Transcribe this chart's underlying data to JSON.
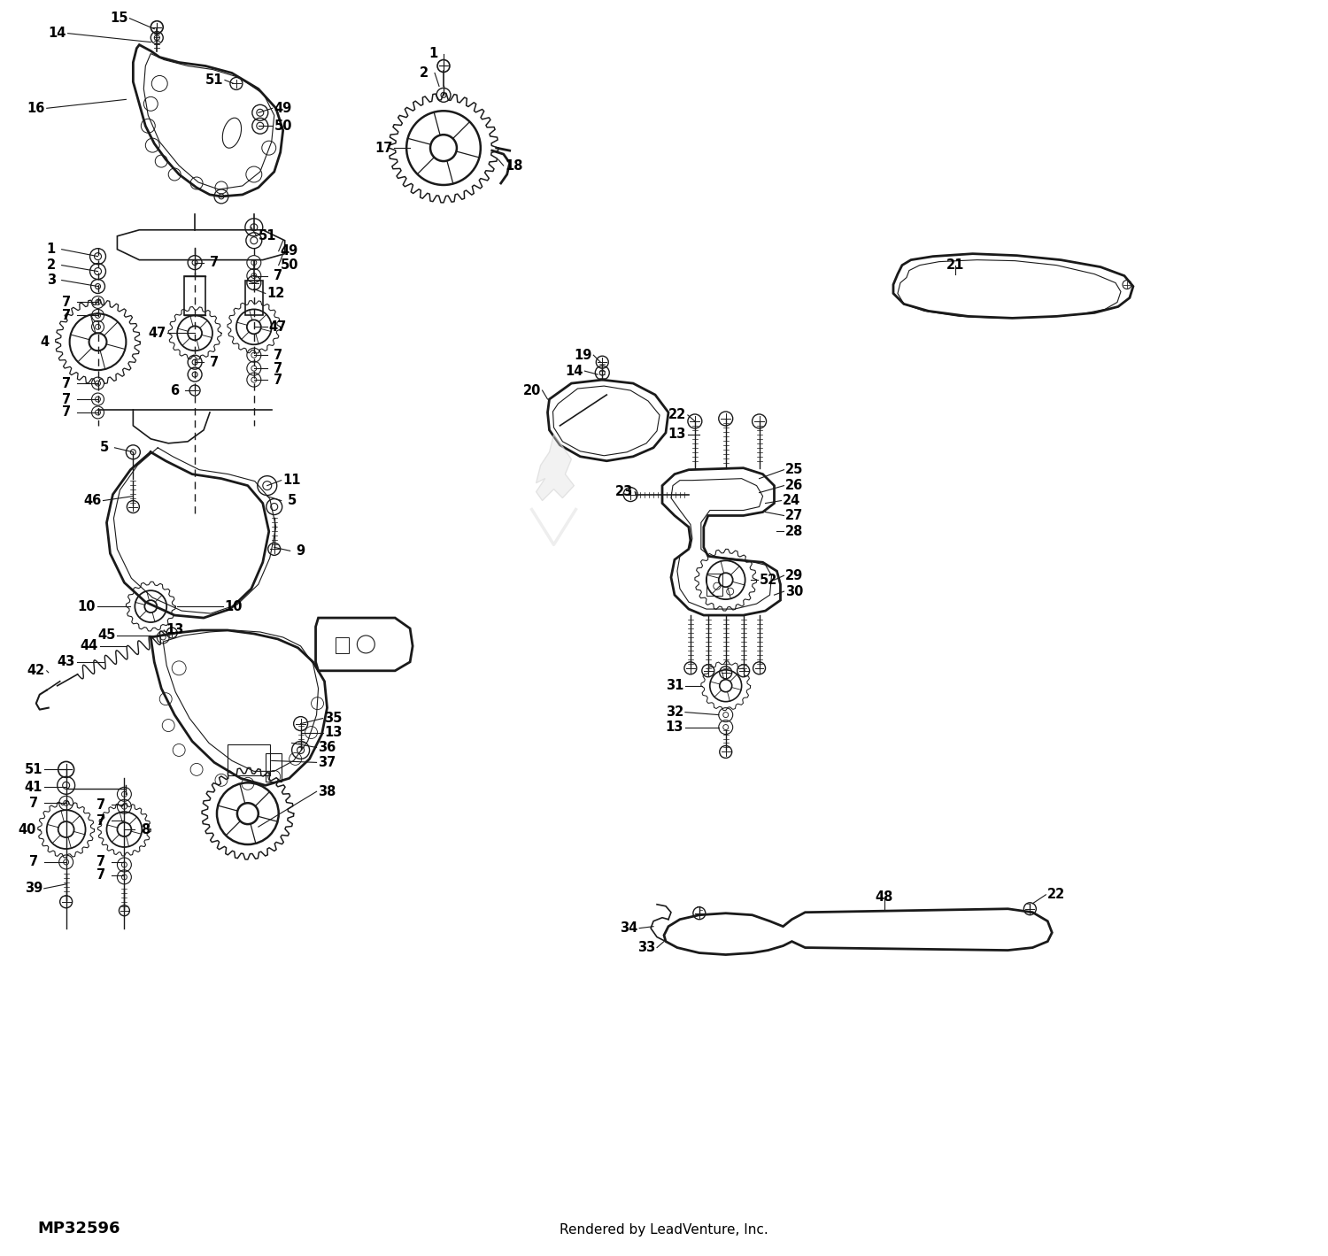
{
  "background_color": "#ffffff",
  "part_number": "MP32596",
  "footer_text": "Rendered by LeadVenture, Inc.",
  "figsize": [
    15.0,
    14.19
  ],
  "dpi": 100,
  "line_color": "#1a1a1a",
  "text_color": "#000000",
  "label_fontsize": 10.5,
  "footer_fontsize": 11,
  "part_number_fontsize": 13
}
